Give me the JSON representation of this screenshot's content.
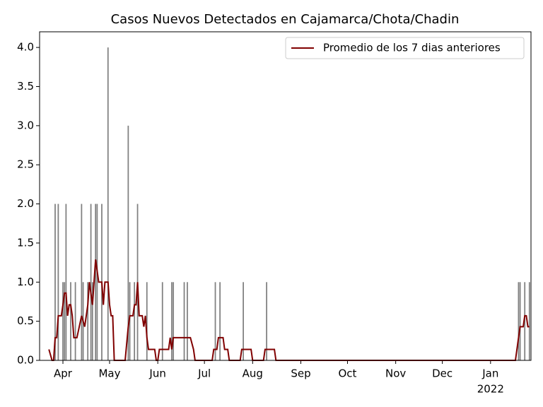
{
  "chart_data": {
    "type": "bar-line",
    "title": "Casos Nuevos Detectados en Cajamarca/Chota/Chadin",
    "series": [
      {
        "type": "bar",
        "color": "#808080",
        "x": [
          "2021-03-27",
          "2021-03-29",
          "2021-04-01",
          "2021-04-02",
          "2021-04-03",
          "2021-04-06",
          "2021-04-09",
          "2021-04-13",
          "2021-04-14",
          "2021-04-17",
          "2021-04-19",
          "2021-04-20",
          "2021-04-22",
          "2021-04-23",
          "2021-04-26",
          "2021-04-30",
          "2021-05-13",
          "2021-05-14",
          "2021-05-17",
          "2021-05-19",
          "2021-05-25",
          "2021-06-04",
          "2021-06-10",
          "2021-06-11",
          "2021-06-18",
          "2021-06-20",
          "2021-07-08",
          "2021-07-11",
          "2021-07-26",
          "2021-08-10",
          "2022-01-19",
          "2022-01-20",
          "2022-01-23",
          "2022-01-26"
        ],
        "values": [
          2,
          2,
          1,
          1,
          2,
          1,
          1,
          2,
          1,
          1,
          2,
          1,
          2,
          2,
          2,
          4,
          3,
          1,
          1,
          2,
          1,
          1,
          1,
          1,
          1,
          1,
          1,
          1,
          1,
          1,
          1,
          1,
          1,
          1
        ]
      },
      {
        "type": "line",
        "name": "Promedio de los 7 dias anteriores",
        "color": "#800000",
        "x": [
          "2021-03-23",
          "2021-03-25",
          "2021-03-26",
          "2021-03-27",
          "2021-03-28",
          "2021-03-29",
          "2021-03-31",
          "2021-04-01",
          "2021-04-02",
          "2021-04-03",
          "2021-04-04",
          "2021-04-05",
          "2021-04-06",
          "2021-04-07",
          "2021-04-08",
          "2021-04-10",
          "2021-04-13",
          "2021-04-15",
          "2021-04-17",
          "2021-04-18",
          "2021-04-20",
          "2021-04-22",
          "2021-04-24",
          "2021-04-26",
          "2021-04-27",
          "2021-04-28",
          "2021-04-30",
          "2021-05-01",
          "2021-05-02",
          "2021-05-03",
          "2021-05-04",
          "2021-05-11",
          "2021-05-13",
          "2021-05-14",
          "2021-05-16",
          "2021-05-17",
          "2021-05-18",
          "2021-05-19",
          "2021-05-20",
          "2021-05-22",
          "2021-05-23",
          "2021-05-24",
          "2021-05-25",
          "2021-05-26",
          "2021-05-30",
          "2021-05-31",
          "2021-06-01",
          "2021-06-02",
          "2021-06-08",
          "2021-06-09",
          "2021-06-10",
          "2021-06-11",
          "2021-06-22",
          "2021-06-24",
          "2021-06-25",
          "2021-07-06",
          "2021-07-07",
          "2021-07-09",
          "2021-07-10",
          "2021-07-13",
          "2021-07-14",
          "2021-07-16",
          "2021-07-17",
          "2021-07-24",
          "2021-07-25",
          "2021-07-31",
          "2021-08-01",
          "2021-08-08",
          "2021-08-09",
          "2021-08-15",
          "2021-08-16",
          "2022-01-17",
          "2022-01-19",
          "2022-01-20",
          "2022-01-22",
          "2022-01-23",
          "2022-01-24",
          "2022-01-25",
          "2022-01-26"
        ],
        "values": [
          0.14,
          0,
          0,
          0.29,
          0.29,
          0.57,
          0.57,
          0.71,
          0.86,
          0.86,
          0.57,
          0.71,
          0.71,
          0.57,
          0.29,
          0.29,
          0.57,
          0.43,
          0.71,
          1.0,
          0.71,
          1.29,
          1.0,
          1.0,
          0.71,
          1.0,
          1.0,
          0.71,
          0.57,
          0.57,
          0,
          0,
          0.43,
          0.57,
          0.57,
          0.71,
          0.71,
          1.0,
          0.57,
          0.57,
          0.43,
          0.57,
          0.29,
          0.14,
          0.14,
          0,
          0,
          0.14,
          0.14,
          0.29,
          0.14,
          0.29,
          0.29,
          0.14,
          0,
          0,
          0.14,
          0.14,
          0.29,
          0.29,
          0.14,
          0.14,
          0,
          0,
          0.14,
          0.14,
          0,
          0,
          0.14,
          0.14,
          0,
          0,
          0.29,
          0.43,
          0.43,
          0.57,
          0.57,
          0.43,
          0.43
        ]
      }
    ],
    "xlim": [
      "2021-03-17",
      "2022-01-27"
    ],
    "xticks": [
      {
        "value": "2021-04-01",
        "label": "Apr"
      },
      {
        "value": "2021-05-01",
        "label": "May"
      },
      {
        "value": "2021-06-01",
        "label": "Jun"
      },
      {
        "value": "2021-07-01",
        "label": "Jul"
      },
      {
        "value": "2021-08-01",
        "label": "Aug"
      },
      {
        "value": "2021-09-01",
        "label": "Sep"
      },
      {
        "value": "2021-10-01",
        "label": "Oct"
      },
      {
        "value": "2021-11-01",
        "label": "Nov"
      },
      {
        "value": "2021-12-01",
        "label": "Dec"
      },
      {
        "value": "2022-01-01",
        "label": "Jan",
        "sublabel": "2022"
      }
    ],
    "ylim": [
      0,
      4.2
    ],
    "yticks": [
      {
        "value": 0,
        "label": "0.0"
      },
      {
        "value": 0.5,
        "label": "0.5"
      },
      {
        "value": 1,
        "label": "1.0"
      },
      {
        "value": 1.5,
        "label": "1.5"
      },
      {
        "value": 2,
        "label": "2.0"
      },
      {
        "value": 2.5,
        "label": "2.5"
      },
      {
        "value": 3,
        "label": "3.0"
      },
      {
        "value": 3.5,
        "label": "3.5"
      },
      {
        "value": 4,
        "label": "4.0"
      }
    ],
    "legend": "upper right"
  }
}
